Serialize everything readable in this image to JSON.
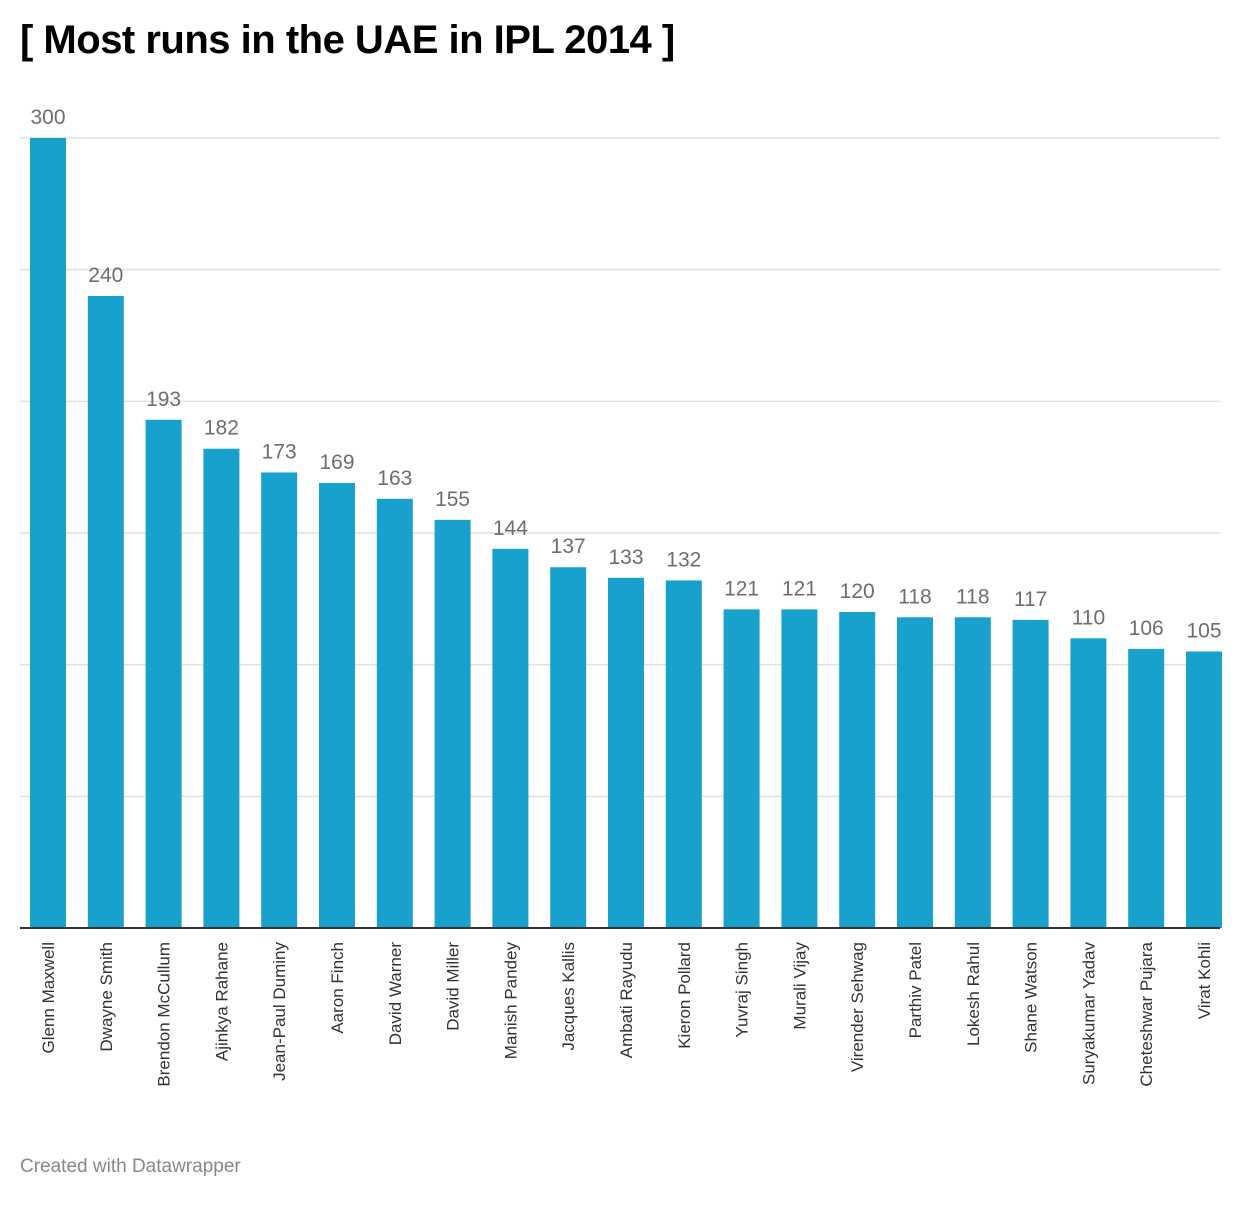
{
  "chart_data": {
    "type": "bar",
    "title": "[ Most runs in the UAE in IPL 2014 ]",
    "xlabel": "",
    "ylabel": "",
    "ylim": [
      0,
      300
    ],
    "grid": true,
    "bar_color": "#18a1cd",
    "categories": [
      "Glenn Maxwell",
      "Dwayne Smith",
      "Brendon McCullum",
      "Ajinkya Rahane",
      "Jean-Paul Duminy",
      "Aaron Finch",
      "David Warner",
      "David Miller",
      "Manish Pandey",
      "Jacques Kallis",
      "Ambati Rayudu",
      "Kieron Pollard",
      "Yuvraj Singh",
      "Murali Vijay",
      "Virender Sehwag",
      "Parthiv Patel",
      "Lokesh Rahul",
      "Shane Watson",
      "Suryakumar Yadav",
      "Cheteshwar Pujara",
      "Virat Kohli"
    ],
    "values": [
      300,
      240,
      193,
      182,
      173,
      169,
      163,
      155,
      144,
      137,
      133,
      132,
      121,
      121,
      120,
      118,
      118,
      117,
      110,
      106,
      105
    ]
  },
  "footer": "Created with Datawrapper"
}
